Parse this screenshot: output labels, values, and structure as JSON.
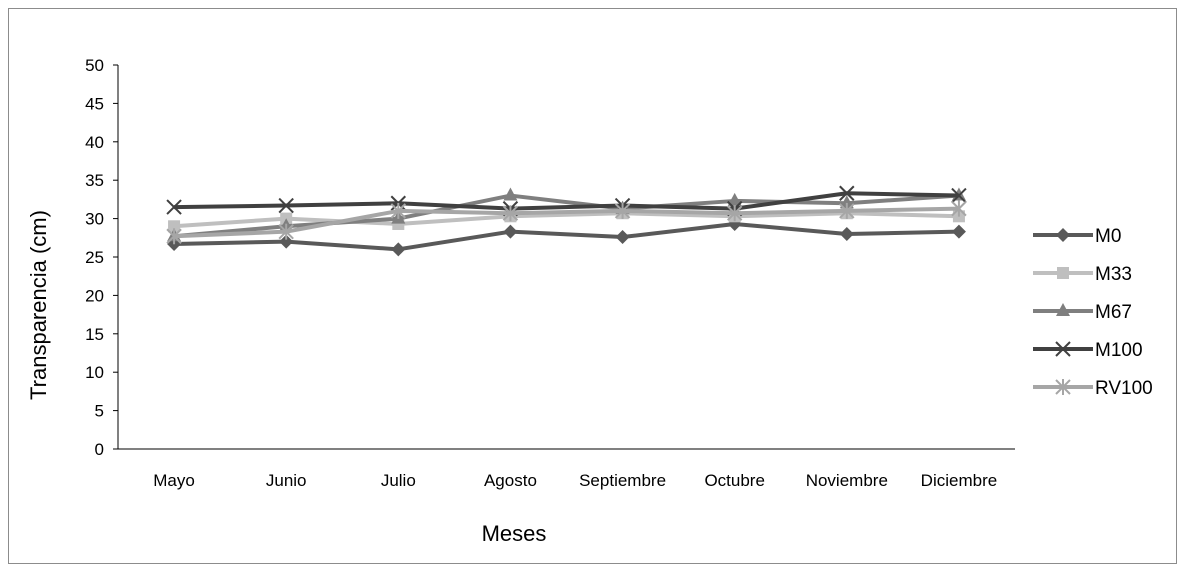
{
  "chart_data": {
    "type": "line",
    "title": "",
    "xlabel": "Meses",
    "ylabel": "Transparencia (cm)",
    "ylim": [
      0,
      50
    ],
    "yticks": [
      "0",
      "5",
      "10",
      "15",
      "20",
      "25",
      "30",
      "35",
      "40",
      "45",
      "50"
    ],
    "grid": false,
    "legend_position": "right",
    "categories": [
      "Mayo",
      "Junio",
      "Julio",
      "Agosto",
      "Septiembre",
      "Octubre",
      "Noviembre",
      "Diciembre"
    ],
    "series": [
      {
        "name": "M0",
        "marker": "diamond",
        "color": "#595959",
        "values": [
          26.7,
          27.0,
          26.0,
          28.3,
          27.6,
          29.3,
          28.0,
          28.3
        ]
      },
      {
        "name": "M33",
        "marker": "square",
        "color": "#bfbfbf",
        "values": [
          29.0,
          30.0,
          29.3,
          30.3,
          30.7,
          30.3,
          30.7,
          30.3
        ]
      },
      {
        "name": "M67",
        "marker": "triangle",
        "color": "#7f7f7f",
        "values": [
          27.7,
          29.0,
          30.0,
          33.0,
          31.3,
          32.3,
          32.0,
          33.0
        ]
      },
      {
        "name": "M100",
        "marker": "x",
        "color": "#404040",
        "values": [
          31.5,
          31.7,
          32.0,
          31.3,
          31.7,
          31.3,
          33.3,
          33.0
        ]
      },
      {
        "name": "RV100",
        "marker": "star",
        "color": "#a6a6a6",
        "values": [
          27.7,
          28.3,
          31.0,
          30.7,
          31.0,
          30.7,
          31.0,
          31.3
        ]
      }
    ]
  }
}
